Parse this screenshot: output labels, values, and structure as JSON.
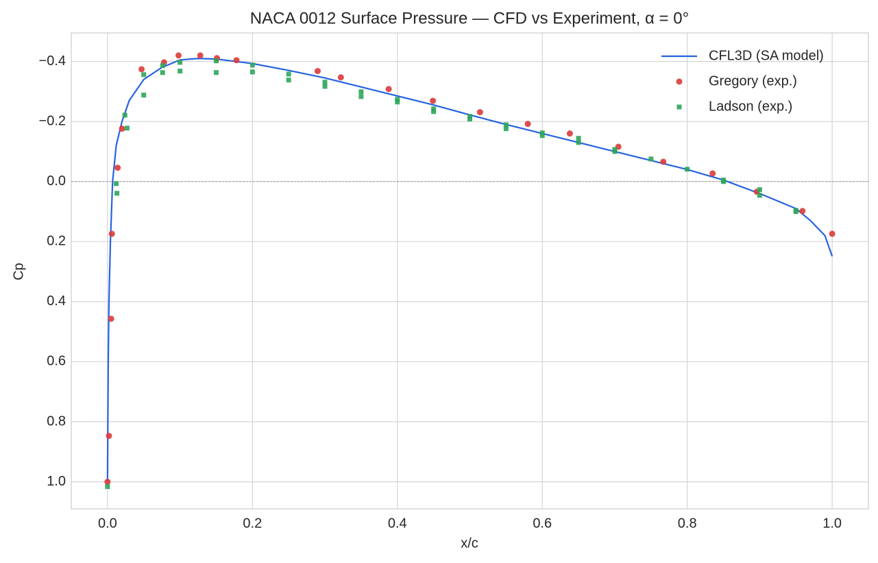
{
  "chart_data": {
    "type": "line",
    "title": "NACA 0012 Surface Pressure — CFD vs Experiment, α = 0°",
    "xlabel": "x/c",
    "ylabel": "Cp",
    "xlim": [
      -0.05,
      1.05
    ],
    "ylim": [
      -0.495,
      1.09
    ],
    "invert_y": true,
    "xticks": [
      {
        "value": 0,
        "label": "0.0"
      },
      0.2,
      0.4,
      0.6,
      0.8,
      {
        "value": 1,
        "label": "1.0"
      }
    ],
    "yticks": [
      {
        "value": -0.4,
        "label": "−0.4"
      },
      {
        "value": -0.2,
        "label": "−0.2"
      },
      {
        "value": 0,
        "label": "0.0"
      },
      0.2,
      0.4,
      0.6,
      0.8,
      {
        "value": 1,
        "label": "1.0"
      }
    ],
    "grid": true,
    "hline": 0,
    "legend": "upper right",
    "series": [
      {
        "name": "CFL3D (SA model)",
        "type": "line",
        "color": "#2463e0",
        "x": [
          0,
          0.0005,
          0.001,
          0.002,
          0.004,
          0.007,
          0.012,
          0.02,
          0.03,
          0.05,
          0.075,
          0.1,
          0.125,
          0.15,
          0.2,
          0.25,
          0.3,
          0.35,
          0.4,
          0.45,
          0.5,
          0.55,
          0.6,
          0.65,
          0.7,
          0.75,
          0.8,
          0.85,
          0.9,
          0.95,
          0.97,
          0.99,
          1.0
        ],
        "values": [
          1.0,
          0.8,
          0.6,
          0.4,
          0.2,
          0.0,
          -0.12,
          -0.2,
          -0.27,
          -0.34,
          -0.38,
          -0.405,
          -0.41,
          -0.408,
          -0.393,
          -0.37,
          -0.345,
          -0.315,
          -0.285,
          -0.255,
          -0.222,
          -0.19,
          -0.16,
          -0.13,
          -0.1,
          -0.07,
          -0.04,
          -0.005,
          0.04,
          0.09,
          0.13,
          0.18,
          0.249
        ]
      },
      {
        "name": "Gregory (exp.)",
        "type": "scatter",
        "marker": "circle",
        "color": "#dc3a3a",
        "x": [
          0,
          0.002,
          0.005,
          0.006,
          0.014,
          0.02,
          0.047,
          0.078,
          0.098,
          0.128,
          0.151,
          0.178,
          0.29,
          0.322,
          0.388,
          0.449,
          0.514,
          0.58,
          0.638,
          0.705,
          0.767,
          0.835,
          0.896,
          0.959,
          1.0
        ],
        "values": [
          1.0,
          0.847,
          0.457,
          0.174,
          -0.046,
          -0.176,
          -0.374,
          -0.397,
          -0.42,
          -0.42,
          -0.411,
          -0.404,
          -0.368,
          -0.347,
          -0.308,
          -0.269,
          -0.231,
          -0.192,
          -0.16,
          -0.116,
          -0.066,
          -0.027,
          0.034,
          0.098,
          0.174
        ]
      },
      {
        "name": "Ladson (exp.)",
        "type": "scatter",
        "marker": "square",
        "color": "#2ca55a",
        "x": [
          0,
          0.013,
          0.012,
          0.027,
          0.024,
          0.05,
          0.05,
          0.076,
          0.076,
          0.1,
          0.1,
          0.15,
          0.15,
          0.2,
          0.2,
          0.25,
          0.25,
          0.3,
          0.3,
          0.35,
          0.35,
          0.4,
          0.4,
          0.45,
          0.45,
          0.5,
          0.5,
          0.55,
          0.55,
          0.6,
          0.6,
          0.65,
          0.65,
          0.7,
          0.7,
          0.75,
          0.8,
          0.85,
          0.85,
          0.9,
          0.9,
          0.95,
          0.95
        ],
        "values": [
          1.016,
          0.039,
          0.007,
          -0.178,
          -0.221,
          -0.288,
          -0.356,
          -0.363,
          -0.386,
          -0.368,
          -0.397,
          -0.363,
          -0.402,
          -0.365,
          -0.388,
          -0.338,
          -0.358,
          -0.317,
          -0.331,
          -0.283,
          -0.299,
          -0.265,
          -0.274,
          -0.233,
          -0.242,
          -0.208,
          -0.217,
          -0.176,
          -0.189,
          -0.153,
          -0.162,
          -0.13,
          -0.144,
          -0.1,
          -0.107,
          -0.075,
          -0.041,
          -0.005,
          0.0,
          0.027,
          0.046,
          0.096,
          0.1
        ]
      }
    ]
  }
}
